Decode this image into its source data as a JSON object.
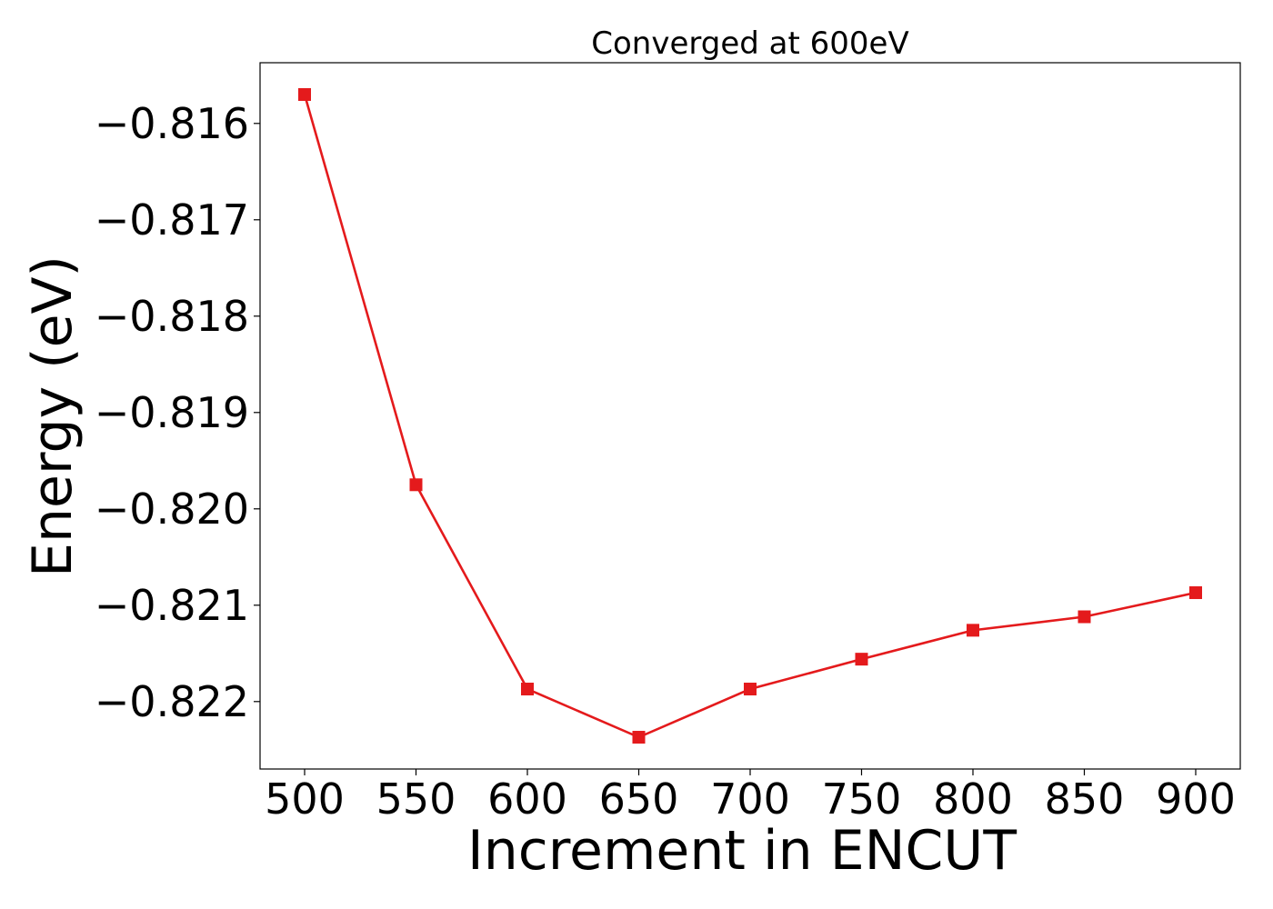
{
  "chart_data": {
    "type": "line",
    "title": "Converged at 600eV",
    "xlabel": "Increment in ENCUT",
    "ylabel": "Energy (eV)",
    "x": [
      500,
      550,
      600,
      650,
      700,
      750,
      800,
      850,
      900
    ],
    "series": [
      {
        "values": [
          -0.8157,
          -0.81975,
          -0.82187,
          -0.82237,
          -0.82187,
          -0.82156,
          -0.82126,
          -0.82112,
          -0.82087
        ],
        "color": "#e41a1c",
        "marker": "square"
      }
    ],
    "xticks": [
      500,
      550,
      600,
      650,
      700,
      750,
      800,
      850,
      900
    ],
    "xtick_labels": [
      "500",
      "550",
      "600",
      "650",
      "700",
      "750",
      "800",
      "850",
      "900"
    ],
    "yticks": [
      -0.816,
      -0.817,
      -0.818,
      -0.819,
      -0.82,
      -0.821,
      -0.822
    ],
    "ytick_labels": [
      "−0.816",
      "−0.817",
      "−0.818",
      "−0.819",
      "−0.820",
      "−0.821",
      "−0.822"
    ],
    "xlim": [
      480,
      920
    ],
    "ylim": [
      -0.8227,
      -0.81537
    ],
    "grid": false,
    "legend": false
  }
}
